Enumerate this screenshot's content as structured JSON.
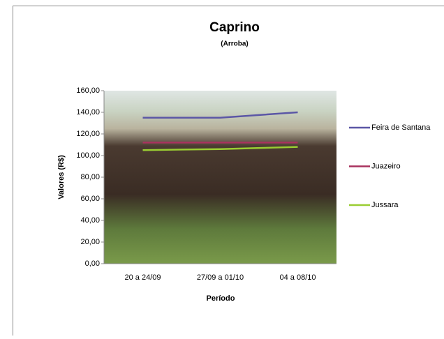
{
  "chart_data": {
    "type": "line",
    "title": "Caprino",
    "subtitle": "(Arroba)",
    "x_label": "Período",
    "y_label": "Valores (R$)",
    "categories": [
      "20 a 24/09",
      "27/09 a 01/10",
      "04 a 08/10"
    ],
    "series": [
      {
        "name": "Feira de Santana",
        "color": "#5b57a6",
        "values": [
          135,
          135,
          140
        ]
      },
      {
        "name": "Juazeiro",
        "color": "#a8325e",
        "values": [
          112,
          112,
          112
        ]
      },
      {
        "name": "Jussara",
        "color": "#9acd32",
        "values": [
          105,
          106,
          108
        ]
      }
    ],
    "ylim": [
      0,
      160
    ],
    "yticks": [
      {
        "value": 0,
        "label": "0,00"
      },
      {
        "value": 20,
        "label": "20,00"
      },
      {
        "value": 40,
        "label": "40,00"
      },
      {
        "value": 60,
        "label": "60,00"
      },
      {
        "value": 80,
        "label": "80,00"
      },
      {
        "value": 100,
        "label": "100,00"
      },
      {
        "value": 120,
        "label": "120,00"
      },
      {
        "value": 140,
        "label": "140,00"
      },
      {
        "value": 160,
        "label": "160,00"
      }
    ],
    "legend": "right"
  }
}
